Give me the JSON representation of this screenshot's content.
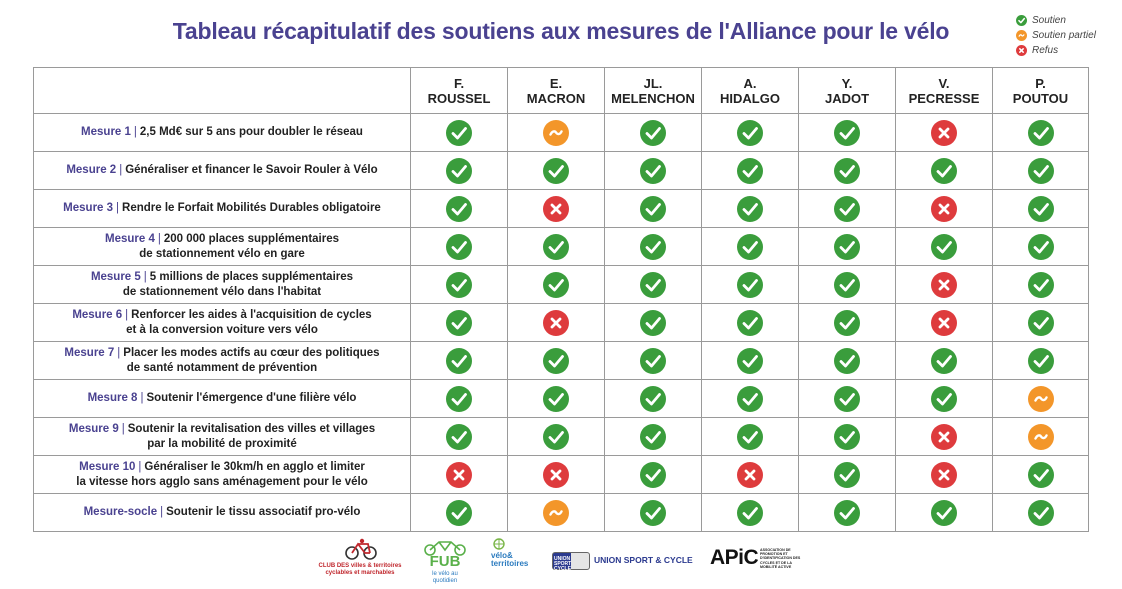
{
  "title": "Tableau récapitulatif des soutiens aux mesures de l'Alliance pour le vélo",
  "legend": [
    {
      "status": "yes",
      "label": "Soutien"
    },
    {
      "status": "partial",
      "label": "Soutien partiel"
    },
    {
      "status": "no",
      "label": "Refus"
    }
  ],
  "colors": {
    "yes": "#3a9d3c",
    "partial": "#f3962a",
    "no": "#de3b3d",
    "accent": "#4a4290"
  },
  "candidates": [
    {
      "line1": "F.",
      "line2": "ROUSSEL"
    },
    {
      "line1": "E.",
      "line2": "MACRON"
    },
    {
      "line1": "JL.",
      "line2": "MELENCHON"
    },
    {
      "line1": "A.",
      "line2": "HIDALGO"
    },
    {
      "line1": "Y.",
      "line2": "JADOT"
    },
    {
      "line1": "V.",
      "line2": "PECRESSE"
    },
    {
      "line1": "P.",
      "line2": "POUTOU"
    }
  ],
  "rows": [
    {
      "num": "Mesure 1",
      "line1": "2,5 Md€ sur 5 ans pour doubler le réseau",
      "line2": "",
      "status": [
        "yes",
        "partial",
        "yes",
        "yes",
        "yes",
        "no",
        "yes"
      ]
    },
    {
      "num": "Mesure 2",
      "line1": "Généraliser et financer le Savoir Rouler à Vélo",
      "line2": "",
      "status": [
        "yes",
        "yes",
        "yes",
        "yes",
        "yes",
        "yes",
        "yes"
      ]
    },
    {
      "num": "Mesure 3",
      "line1": "Rendre le Forfait Mobilités Durables obligatoire",
      "line2": "",
      "status": [
        "yes",
        "no",
        "yes",
        "yes",
        "yes",
        "no",
        "yes"
      ]
    },
    {
      "num": "Mesure 4",
      "line1": "200 000 places supplémentaires",
      "line2": "de stationnement vélo en gare",
      "status": [
        "yes",
        "yes",
        "yes",
        "yes",
        "yes",
        "yes",
        "yes"
      ]
    },
    {
      "num": "Mesure 5",
      "line1": "5 millions de places supplémentaires",
      "line2": "de stationnement vélo dans l'habitat",
      "status": [
        "yes",
        "yes",
        "yes",
        "yes",
        "yes",
        "no",
        "yes"
      ]
    },
    {
      "num": "Mesure 6",
      "line1": "Renforcer les aides à l'acquisition de cycles",
      "line2": "et à la conversion voiture vers vélo",
      "status": [
        "yes",
        "no",
        "yes",
        "yes",
        "yes",
        "no",
        "yes"
      ]
    },
    {
      "num": "Mesure 7",
      "line1": "Placer les modes actifs au cœur des politiques",
      "line2": "de santé notamment de prévention",
      "status": [
        "yes",
        "yes",
        "yes",
        "yes",
        "yes",
        "yes",
        "yes"
      ]
    },
    {
      "num": "Mesure 8",
      "line1": "Soutenir l'émergence d'une filière vélo",
      "line2": "",
      "status": [
        "yes",
        "yes",
        "yes",
        "yes",
        "yes",
        "yes",
        "partial"
      ]
    },
    {
      "num": "Mesure 9",
      "line1": "Soutenir la revitalisation des villes et villages",
      "line2": "par la mobilité de proximité",
      "status": [
        "yes",
        "yes",
        "yes",
        "yes",
        "yes",
        "no",
        "partial"
      ]
    },
    {
      "num": "Mesure 10",
      "line1": "Généraliser le 30km/h en agglo et limiter",
      "line2": "la vitesse hors agglo sans aménagement pour le vélo",
      "status": [
        "no",
        "no",
        "yes",
        "no",
        "yes",
        "no",
        "yes"
      ]
    },
    {
      "num": "Mesure-socle",
      "line1": "Soutenir le tissu associatif pro-vélo",
      "line2": "",
      "status": [
        "yes",
        "partial",
        "yes",
        "yes",
        "yes",
        "yes",
        "yes"
      ]
    }
  ],
  "logos": {
    "cvtc_line1": "CLUB DES villes & territoires",
    "cvtc_line2": "cyclables et marchables",
    "fub_name": "FUB",
    "fub_tagline": "le vélo au quotidien",
    "vt_line1": "vélo&",
    "vt_line2": "territoires",
    "usc_badge": "UNION SPORT CYCLE",
    "usc_name": "UNION SPORT & CYCLE",
    "apic_name": "APiC",
    "apic_desc": "ASSOCIATION DE PROMOTION ET D'IDENTIFICATION DES CYCLES ET DE LA MOBILITÉ ACTIVE"
  }
}
